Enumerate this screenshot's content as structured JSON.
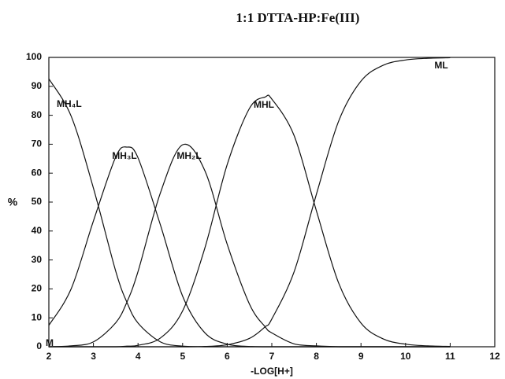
{
  "chart_data": {
    "type": "line",
    "title": "1:1   DTTA-HP:Fe(III)",
    "x_label": "-LOG[H+]",
    "y_label": "%",
    "x": [
      2,
      2.5,
      3,
      3.5,
      3.75,
      4,
      4.5,
      5,
      5.5,
      6,
      6.5,
      6.85,
      7,
      7.5,
      8,
      8.5,
      9,
      9.5,
      10,
      10.5,
      11
    ],
    "series": [
      {
        "name": "MH₄L",
        "color": "#111111",
        "values": [
          92.6,
          79.7,
          54.8,
          26.1,
          15.4,
          8.2,
          1.7,
          0.2,
          0,
          0,
          0,
          0,
          0,
          0,
          0,
          0,
          0,
          0,
          0,
          0,
          0
        ]
      },
      {
        "name": "MH₃L",
        "color": "#111111",
        "values": [
          7.4,
          20.0,
          43.5,
          65.6,
          69.0,
          65.3,
          42.2,
          17.5,
          4.8,
          0.9,
          0.1,
          0,
          0,
          0,
          0,
          0,
          0,
          0,
          0,
          0,
          0
        ]
      },
      {
        "name": "MH₂L",
        "color": "#111111",
        "values": [
          0,
          0.3,
          1.7,
          8.3,
          15.4,
          26.0,
          53.1,
          69.8,
          60.8,
          35.4,
          14.7,
          6.9,
          4.8,
          1.0,
          0.3,
          0,
          0,
          0,
          0,
          0,
          0
        ]
      },
      {
        "name": "MHL",
        "color": "#111111",
        "values": [
          0,
          0,
          0,
          0,
          0.2,
          0.5,
          3.0,
          12.4,
          34.2,
          63.0,
          82.4,
          86.3,
          85.6,
          73.0,
          47.0,
          22.0,
          8.2,
          2.7,
          0.9,
          0.3,
          0.1
        ]
      },
      {
        "name": "ML",
        "color": "#111111",
        "values": [
          0,
          0,
          0,
          0,
          0,
          0,
          0,
          0,
          0.1,
          0.7,
          2.9,
          6.9,
          9.6,
          25.9,
          52.7,
          78.0,
          91.8,
          97.3,
          99.1,
          99.7,
          99.9
        ]
      }
    ],
    "annotations": [
      "M"
    ],
    "xlim": [
      2,
      12
    ],
    "xticks": [
      2,
      3,
      4,
      5,
      6,
      7,
      8,
      9,
      10,
      11,
      12
    ],
    "ylim": [
      0,
      100
    ],
    "yticks": [
      0,
      10,
      20,
      30,
      40,
      50,
      60,
      70,
      80,
      90,
      100
    ],
    "grid": false
  }
}
